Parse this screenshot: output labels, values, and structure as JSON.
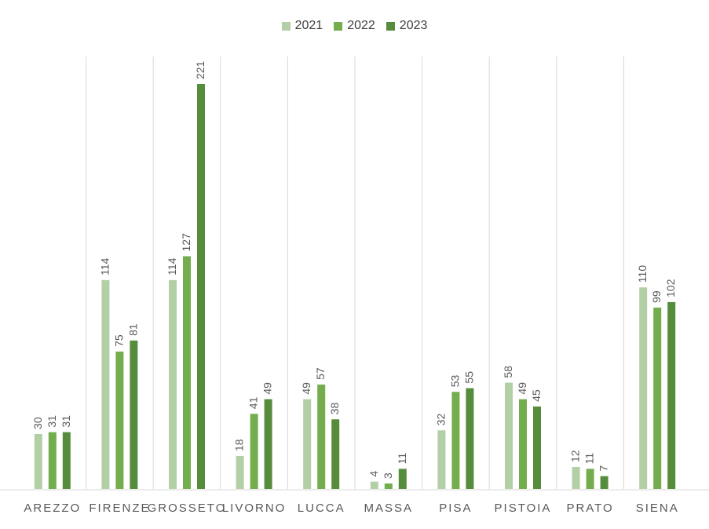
{
  "chart_data": {
    "type": "bar",
    "title": "",
    "xlabel": "",
    "ylabel": "",
    "categories": [
      "AREZZO",
      "FIRENZE",
      "GROSSETO",
      "LIVORNO",
      "LUCCA",
      "MASSA",
      "PISA",
      "PISTOIA",
      "PRATO",
      "SIENA"
    ],
    "series": [
      {
        "name": "2021",
        "color": "#b3cfa6",
        "values": [
          30,
          114,
          114,
          18,
          49,
          4,
          32,
          58,
          12,
          110
        ]
      },
      {
        "name": "2022",
        "color": "#74ad4d",
        "values": [
          31,
          75,
          127,
          41,
          57,
          3,
          53,
          49,
          11,
          99
        ]
      },
      {
        "name": "2023",
        "color": "#568d3c",
        "values": [
          31,
          81,
          221,
          49,
          38,
          11,
          55,
          45,
          7,
          102
        ]
      }
    ],
    "ylim": [
      0,
      236
    ],
    "grid": "vertical-separators",
    "legend_position": "top-center",
    "data_labels": true
  }
}
